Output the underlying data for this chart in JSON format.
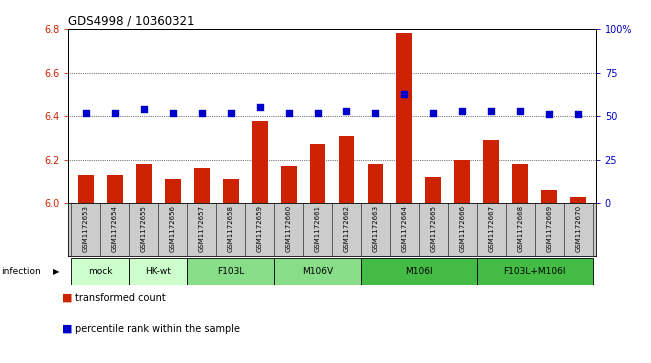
{
  "title": "GDS4998 / 10360321",
  "samples": [
    "GSM1172653",
    "GSM1172654",
    "GSM1172655",
    "GSM1172656",
    "GSM1172657",
    "GSM1172658",
    "GSM1172659",
    "GSM1172660",
    "GSM1172661",
    "GSM1172662",
    "GSM1172663",
    "GSM1172664",
    "GSM1172665",
    "GSM1172666",
    "GSM1172667",
    "GSM1172668",
    "GSM1172669",
    "GSM1172670"
  ],
  "bar_values": [
    6.13,
    6.13,
    6.18,
    6.11,
    6.16,
    6.11,
    6.38,
    6.17,
    6.27,
    6.31,
    6.18,
    6.78,
    6.12,
    6.2,
    6.29,
    6.18,
    6.06,
    6.03
  ],
  "percentile_values": [
    52,
    52,
    54,
    52,
    52,
    52,
    55,
    52,
    52,
    53,
    52,
    63,
    52,
    53,
    53,
    53,
    51,
    51
  ],
  "bar_color": "#cc2200",
  "percentile_color": "#0000cc",
  "ylim_left": [
    6.0,
    6.8
  ],
  "ylim_right": [
    0,
    100
  ],
  "yticks_left": [
    6.0,
    6.2,
    6.4,
    6.6,
    6.8
  ],
  "yticks_right": [
    0,
    25,
    50,
    75,
    100
  ],
  "ytick_labels_right": [
    "0",
    "25",
    "50",
    "75",
    "100%"
  ],
  "group_defs": [
    {
      "label": "mock",
      "start": 0,
      "end": 1,
      "color": "#ccffcc"
    },
    {
      "label": "HK-wt",
      "start": 2,
      "end": 3,
      "color": "#ccffcc"
    },
    {
      "label": "F103L",
      "start": 4,
      "end": 6,
      "color": "#88dd88"
    },
    {
      "label": "M106V",
      "start": 7,
      "end": 9,
      "color": "#88dd88"
    },
    {
      "label": "M106I",
      "start": 10,
      "end": 13,
      "color": "#44bb44"
    },
    {
      "label": "F103L+M106I",
      "start": 14,
      "end": 17,
      "color": "#44bb44"
    }
  ],
  "infection_label": "infection",
  "legend_bar_label": "transformed count",
  "legend_dot_label": "percentile rank within the sample",
  "xtick_bg_color": "#cccccc",
  "grid_dotted_color": "#000000"
}
